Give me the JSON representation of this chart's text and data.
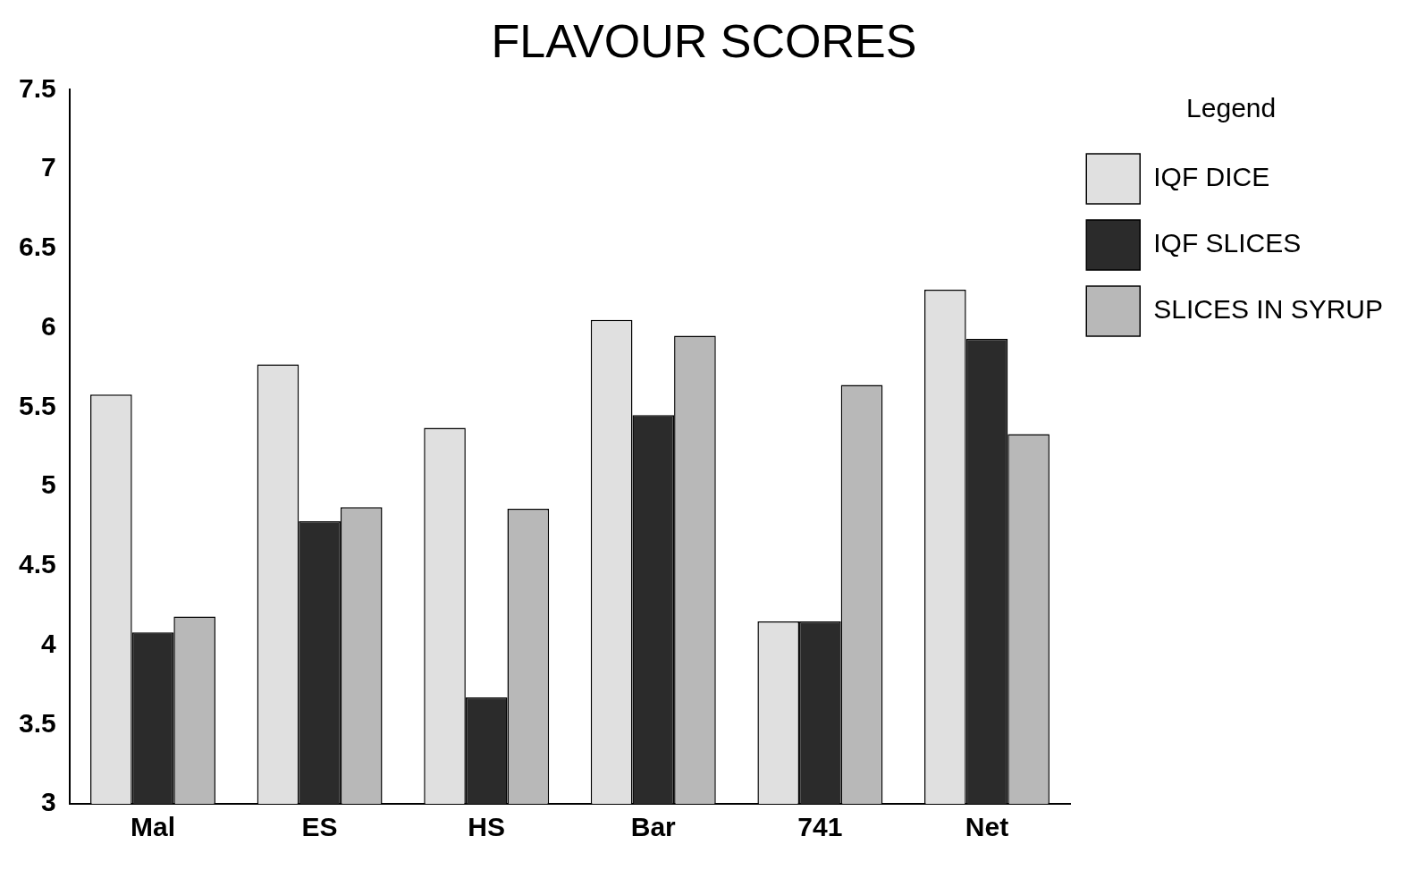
{
  "chart_data": {
    "type": "bar",
    "title": "FLAVOUR SCORES",
    "legend_title": "Legend",
    "categories": [
      "Mal",
      "ES",
      "HS",
      "Bar",
      "741",
      "Net"
    ],
    "series": [
      {
        "name": "IQF DICE",
        "color": "#e0e0e0",
        "values": [
          5.58,
          5.77,
          5.37,
          6.05,
          4.15,
          6.24
        ]
      },
      {
        "name": "IQF SLICES",
        "color": "#2b2b2b",
        "values": [
          4.08,
          4.78,
          3.67,
          5.45,
          4.15,
          5.93
        ]
      },
      {
        "name": "SLICES IN SYRUP",
        "color": "#b8b8b8",
        "values": [
          4.18,
          4.87,
          4.86,
          5.95,
          5.64,
          5.33
        ]
      }
    ],
    "ylim": [
      3,
      7.5
    ],
    "yticks": [
      3,
      3.5,
      4,
      4.5,
      5,
      5.5,
      6,
      6.5,
      7,
      7.5
    ],
    "grid": false,
    "legend": "right"
  }
}
